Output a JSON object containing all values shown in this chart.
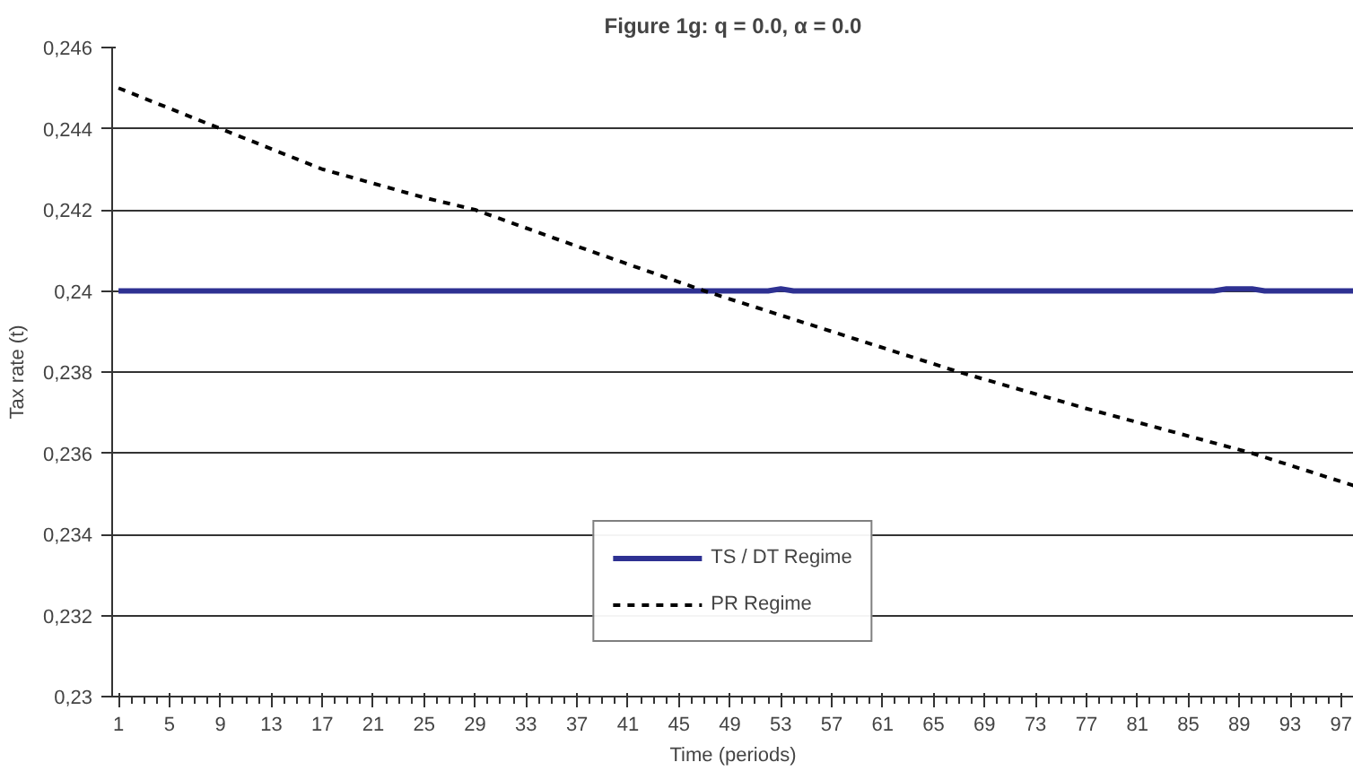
{
  "chart_data": {
    "type": "line",
    "title": "Figure 1g: q = 0.0, α = 0.0",
    "xlabel": "Time (periods)",
    "ylabel": "Tax rate (t)",
    "xlim": [
      0.5,
      98
    ],
    "xticks": [
      1,
      5,
      9,
      13,
      17,
      21,
      25,
      29,
      33,
      37,
      41,
      45,
      49,
      53,
      57,
      61,
      65,
      69,
      73,
      77,
      81,
      85,
      89,
      93,
      97
    ],
    "ylim": [
      0.23,
      0.246
    ],
    "yticks": [
      {
        "value": 0.23,
        "label": "0,23"
      },
      {
        "value": 0.232,
        "label": "0,232"
      },
      {
        "value": 0.234,
        "label": "0,234"
      },
      {
        "value": 0.236,
        "label": "0,236"
      },
      {
        "value": 0.238,
        "label": "0,238"
      },
      {
        "value": 0.24,
        "label": "0,24"
      },
      {
        "value": 0.242,
        "label": "0,242"
      },
      {
        "value": 0.244,
        "label": "0,244"
      },
      {
        "value": 0.246,
        "label": "0,246"
      }
    ],
    "grid": "y",
    "legend": "bottom",
    "series": [
      {
        "name": "TS / DT Regime",
        "color": "#2e3192",
        "line_style": "solid",
        "x": [
          1,
          52,
          53,
          54,
          87,
          88,
          90,
          91,
          98
        ],
        "values": [
          0.24,
          0.24,
          0.24005,
          0.24,
          0.24,
          0.24005,
          0.24005,
          0.24,
          0.24
        ]
      },
      {
        "name": "PR Regime",
        "color": "#000000",
        "line_style": "dashed",
        "x": [
          1,
          9,
          17,
          25,
          29,
          37,
          47,
          57,
          67,
          77,
          90,
          98
        ],
        "values": [
          0.245,
          0.244,
          0.243,
          0.2423,
          0.242,
          0.2411,
          0.24,
          0.239,
          0.238,
          0.2371,
          0.236,
          0.2352
        ]
      }
    ]
  }
}
